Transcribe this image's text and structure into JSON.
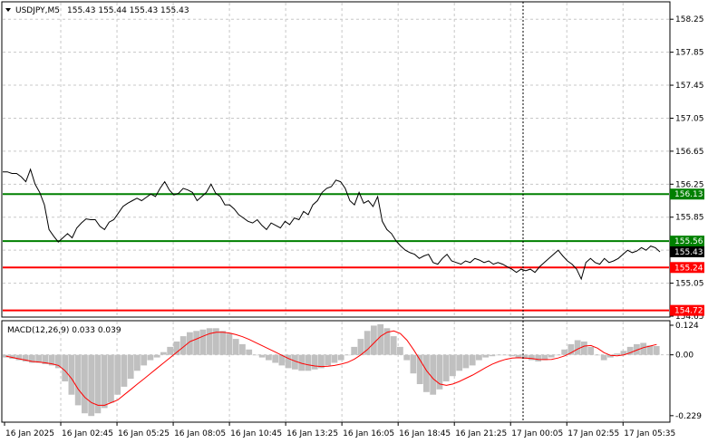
{
  "header": {
    "symbol": "USDJPY,M5",
    "ohlc": "155.43 155.44 155.43 155.43"
  },
  "indicator": {
    "label": "MACD(12,26,9) 0.033 0.039"
  },
  "colors": {
    "support_resistance_green": "#008000",
    "support_resistance_red": "#ff0000",
    "histogram": "#c0c0c0",
    "signal": "#ff0000",
    "price_line": "#000000",
    "current_price_tag": "#000000"
  },
  "chart_data": [
    {
      "type": "line",
      "title": "",
      "xlabel": "",
      "ylabel": "",
      "ylim": [
        154.65,
        158.45
      ],
      "y_ticks": [
        "158.25",
        "157.85",
        "157.45",
        "157.05",
        "156.65",
        "156.25",
        "155.85",
        "155.45",
        "155.05",
        "154.65"
      ],
      "x_ticks": [
        "16 Jan 2025",
        "16 Jan 02:45",
        "16 Jan 05:25",
        "16 Jan 08:05",
        "16 Jan 10:45",
        "16 Jan 13:25",
        "16 Jan 16:05",
        "16 Jan 18:45",
        "16 Jan 21:25",
        "17 Jan 00:05",
        "17 Jan 02:55",
        "17 Jan 05:35"
      ],
      "grid": true,
      "current_price": "155.43",
      "levels": [
        {
          "label": "156.13",
          "value": 156.13,
          "color": "#008000"
        },
        {
          "label": "155.56",
          "value": 155.56,
          "color": "#008000"
        },
        {
          "label": "155.24",
          "value": 155.24,
          "color": "#ff0000"
        },
        {
          "label": "154.72",
          "value": 154.72,
          "color": "#ff0000"
        }
      ],
      "series": [
        {
          "values": [
            156.4,
            156.4,
            156.38,
            156.38,
            156.34,
            156.28,
            156.43,
            156.25,
            156.15,
            156.0,
            155.7,
            155.62,
            155.55,
            155.6,
            155.65,
            155.6,
            155.72,
            155.78,
            155.83,
            155.82,
            155.82,
            155.74,
            155.7,
            155.79,
            155.82,
            155.9,
            155.98,
            156.02,
            156.05,
            156.08,
            156.05,
            156.09,
            156.13,
            156.1,
            156.2,
            156.28,
            156.18,
            156.12,
            156.14,
            156.2,
            156.18,
            156.15,
            156.05,
            156.1,
            156.15,
            156.25,
            156.14,
            156.1,
            156.0,
            156.0,
            155.95,
            155.88,
            155.84,
            155.8,
            155.78,
            155.82,
            155.75,
            155.7,
            155.78,
            155.75,
            155.72,
            155.8,
            155.76,
            155.84,
            155.82,
            155.92,
            155.88,
            156.0,
            156.05,
            156.15,
            156.2,
            156.22,
            156.3,
            156.28,
            156.2,
            156.05,
            156.0,
            156.15,
            156.02,
            156.05,
            155.98,
            156.1,
            155.8,
            155.7,
            155.65,
            155.56,
            155.5,
            155.45,
            155.42,
            155.4,
            155.35,
            155.38,
            155.4,
            155.3,
            155.28,
            155.35,
            155.4,
            155.32,
            155.3,
            155.28,
            155.32,
            155.3,
            155.35,
            155.33,
            155.3,
            155.32,
            155.28,
            155.3,
            155.28,
            155.25,
            155.22,
            155.18,
            155.22,
            155.2,
            155.22,
            155.18,
            155.25,
            155.3,
            155.35,
            155.4,
            155.45,
            155.38,
            155.32,
            155.28,
            155.22,
            155.1,
            155.3,
            155.35,
            155.3,
            155.28,
            155.35,
            155.3,
            155.32,
            155.35,
            155.4,
            155.45,
            155.42,
            155.44,
            155.48,
            155.45,
            155.5,
            155.48,
            155.43
          ]
        }
      ]
    },
    {
      "type": "bar",
      "title": "",
      "xlabel": "",
      "ylabel": "",
      "ylim": [
        -0.25,
        0.125
      ],
      "y_ticks": [
        "0.124",
        "0.00",
        "-0.229"
      ],
      "series": [
        {
          "name": "MACD",
          "values": [
            -0.01,
            -0.015,
            -0.02,
            -0.025,
            -0.03,
            -0.03,
            -0.035,
            -0.04,
            -0.05,
            -0.1,
            -0.15,
            -0.19,
            -0.22,
            -0.23,
            -0.22,
            -0.2,
            -0.18,
            -0.15,
            -0.12,
            -0.09,
            -0.06,
            -0.04,
            -0.02,
            -0.01,
            0.01,
            0.03,
            0.05,
            0.07,
            0.085,
            0.09,
            0.095,
            0.1,
            0.1,
            0.09,
            0.08,
            0.06,
            0.04,
            0.02,
            0.0,
            -0.01,
            -0.02,
            -0.03,
            -0.04,
            -0.05,
            -0.055,
            -0.06,
            -0.06,
            -0.055,
            -0.05,
            -0.04,
            -0.03,
            -0.02,
            0.0,
            0.03,
            0.06,
            0.09,
            0.11,
            0.115,
            0.1,
            0.07,
            0.03,
            -0.02,
            -0.07,
            -0.11,
            -0.14,
            -0.15,
            -0.13,
            -0.1,
            -0.08,
            -0.06,
            -0.05,
            -0.04,
            -0.02,
            -0.01,
            -0.005,
            0.0,
            0.0,
            -0.005,
            -0.01,
            -0.015,
            -0.02,
            -0.025,
            -0.02,
            -0.01,
            0.0,
            0.02,
            0.04,
            0.055,
            0.05,
            0.03,
            0.0,
            -0.02,
            -0.01,
            0.005,
            0.015,
            0.03,
            0.04,
            0.045,
            0.035,
            0.033
          ]
        },
        {
          "name": "Signal",
          "values": [
            -0.005,
            -0.01,
            -0.015,
            -0.02,
            -0.025,
            -0.027,
            -0.03,
            -0.034,
            -0.04,
            -0.06,
            -0.09,
            -0.13,
            -0.16,
            -0.18,
            -0.19,
            -0.19,
            -0.18,
            -0.17,
            -0.15,
            -0.13,
            -0.11,
            -0.09,
            -0.07,
            -0.05,
            -0.03,
            -0.01,
            0.01,
            0.03,
            0.05,
            0.06,
            0.07,
            0.08,
            0.085,
            0.085,
            0.082,
            0.076,
            0.068,
            0.058,
            0.046,
            0.034,
            0.022,
            0.01,
            -0.002,
            -0.014,
            -0.024,
            -0.032,
            -0.038,
            -0.042,
            -0.044,
            -0.043,
            -0.04,
            -0.035,
            -0.028,
            -0.016,
            0.0,
            0.02,
            0.045,
            0.07,
            0.085,
            0.09,
            0.08,
            0.055,
            0.02,
            -0.02,
            -0.06,
            -0.09,
            -0.11,
            -0.115,
            -0.11,
            -0.1,
            -0.088,
            -0.076,
            -0.062,
            -0.048,
            -0.035,
            -0.025,
            -0.017,
            -0.012,
            -0.011,
            -0.012,
            -0.014,
            -0.017,
            -0.018,
            -0.017,
            -0.012,
            -0.004,
            0.008,
            0.022,
            0.033,
            0.035,
            0.025,
            0.008,
            -0.002,
            -0.004,
            0.0,
            0.008,
            0.018,
            0.027,
            0.033,
            0.039
          ]
        }
      ]
    }
  ]
}
